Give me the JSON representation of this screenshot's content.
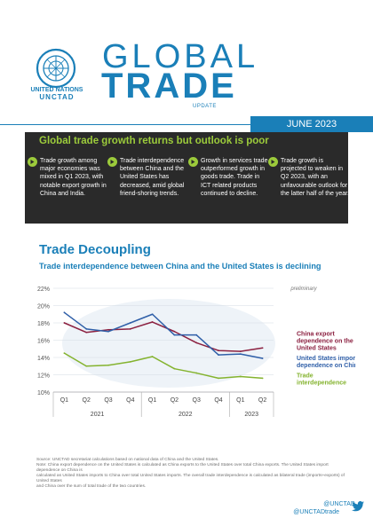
{
  "brand": {
    "org_line1": "UNITED NATIONS",
    "org_line2": "UNCTAD",
    "title_global": "GLOBAL",
    "title_trade": "TRADE",
    "title_update": "UPDATE",
    "date": "JUNE 2023",
    "accent_color": "#1a7fb8",
    "highlight_color": "#9ccb3b"
  },
  "summary": {
    "headline": "Global trade growth returns but outlook is poor",
    "points": [
      "Trade growth among major economies was mixed in Q1 2023, with notable export growth in China and India.",
      "Trade interdependence between China and the United States has decreased, amid global friend-shoring trends.",
      "Growth in services trade outperformed growth in goods trade. Trade in ICT related products continued to decline.",
      "Trade growth is projected to weaken in Q2 2023, with an unfavourable outlook for the latter half of the year."
    ]
  },
  "section": {
    "title": "Trade Decoupling",
    "subtitle": "Trade interdependence between China and the United States is declining"
  },
  "chart_data": {
    "type": "line",
    "title": "",
    "xlabel": "",
    "ylabel": "",
    "annotation": "preliminary",
    "x": [
      "Q1",
      "Q2",
      "Q3",
      "Q4",
      "Q1",
      "Q2",
      "Q3",
      "Q4",
      "Q1",
      "Q2"
    ],
    "years": [
      {
        "label": "2021",
        "quarters": 4
      },
      {
        "label": "2022",
        "quarters": 4
      },
      {
        "label": "2023",
        "quarters": 2
      }
    ],
    "ylim": [
      10,
      22
    ],
    "yticks": [
      "10%",
      "12%",
      "14%",
      "16%",
      "18%",
      "20%",
      "22%"
    ],
    "grid": true,
    "series": [
      {
        "name": "China export dependence on the United States",
        "color": "#8b2040",
        "values": [
          18.0,
          16.9,
          17.2,
          17.3,
          18.1,
          17.0,
          15.7,
          14.8,
          14.7,
          15.1
        ]
      },
      {
        "name": "United States import dependence on China",
        "color": "#2f5fa8",
        "values": [
          19.2,
          17.3,
          17.0,
          18.0,
          19.0,
          16.6,
          16.6,
          14.3,
          14.4,
          13.9
        ]
      },
      {
        "name": "Trade interdependence",
        "color": "#84b32e",
        "values": [
          14.5,
          13.0,
          13.1,
          13.5,
          14.1,
          12.7,
          12.2,
          11.6,
          11.8,
          11.6
        ]
      }
    ],
    "legend_placement": "right"
  },
  "footer": {
    "source_lines": [
      "Source: UNCTAD secretariat calculations based on national data of China and the United States.",
      "Note: China export dependence on the United States is calculated as China exports to the United States over total China exports. The United States import dependence on China is",
      "calculated as United States imports to China over total United States imports. The overall trade interdependence is calculated as bilateral trade (imports+exports) of United States",
      "and China over the sum of total trade of the two countries."
    ],
    "social": [
      "@UNCTAD",
      "@UNCTADtrade"
    ]
  }
}
